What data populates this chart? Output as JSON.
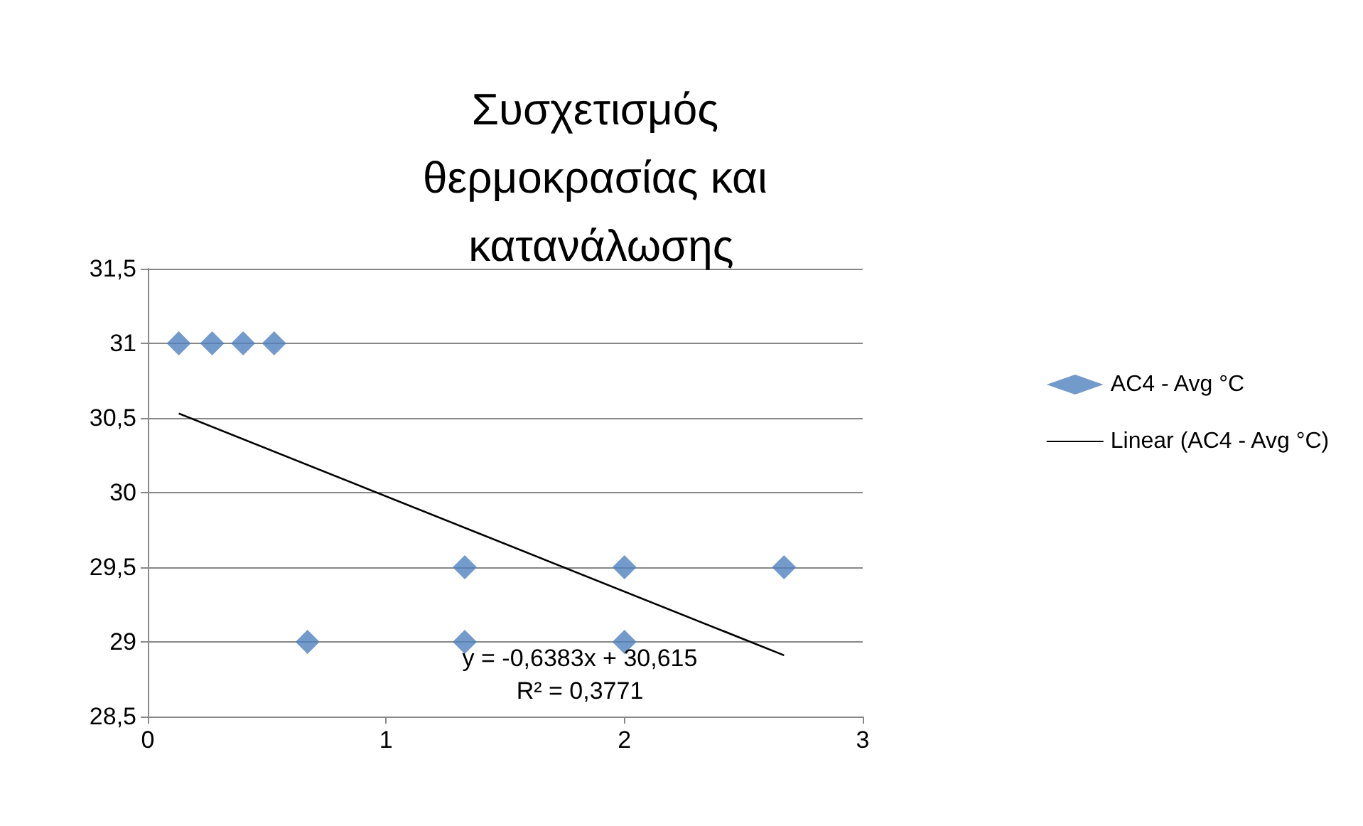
{
  "chart_data": {
    "type": "scatter",
    "title": "Συσχετισμός θερμοκρασίας και κατανάλωσης",
    "xlim": [
      0,
      3
    ],
    "xticks": [
      0,
      1,
      2,
      3
    ],
    "ylim": [
      28.5,
      31.5
    ],
    "yticks": [
      {
        "value": 28.5,
        "label": "28,5"
      },
      {
        "value": 29,
        "label": "29"
      },
      {
        "value": 29.5,
        "label": "29,5"
      },
      {
        "value": 30,
        "label": "30"
      },
      {
        "value": 30.5,
        "label": "30,5"
      },
      {
        "value": 31,
        "label": "31"
      },
      {
        "value": 31.5,
        "label": "31,5"
      }
    ],
    "grid": "y",
    "legend": "right",
    "series": [
      {
        "name": "AC4 - Avg °C",
        "color": "#4f81bd",
        "marker": "diamond",
        "x": [
          0.13,
          0.27,
          0.4,
          0.53,
          0.67,
          1.33,
          1.33,
          2,
          2,
          2.67
        ],
        "values": [
          31,
          31,
          31,
          31,
          29,
          29.5,
          29,
          29.5,
          29,
          29.5
        ]
      },
      {
        "type": "line",
        "name": "Linear (AC4 - Avg °C)",
        "color": "#000000",
        "marker": "none",
        "line_style": "solid",
        "x": [
          0.13,
          2.67
        ],
        "values": [
          30.53,
          28.91
        ]
      }
    ],
    "annotations": [
      "y = -0,6383x + 30,615",
      "R² = 0,3771"
    ]
  }
}
